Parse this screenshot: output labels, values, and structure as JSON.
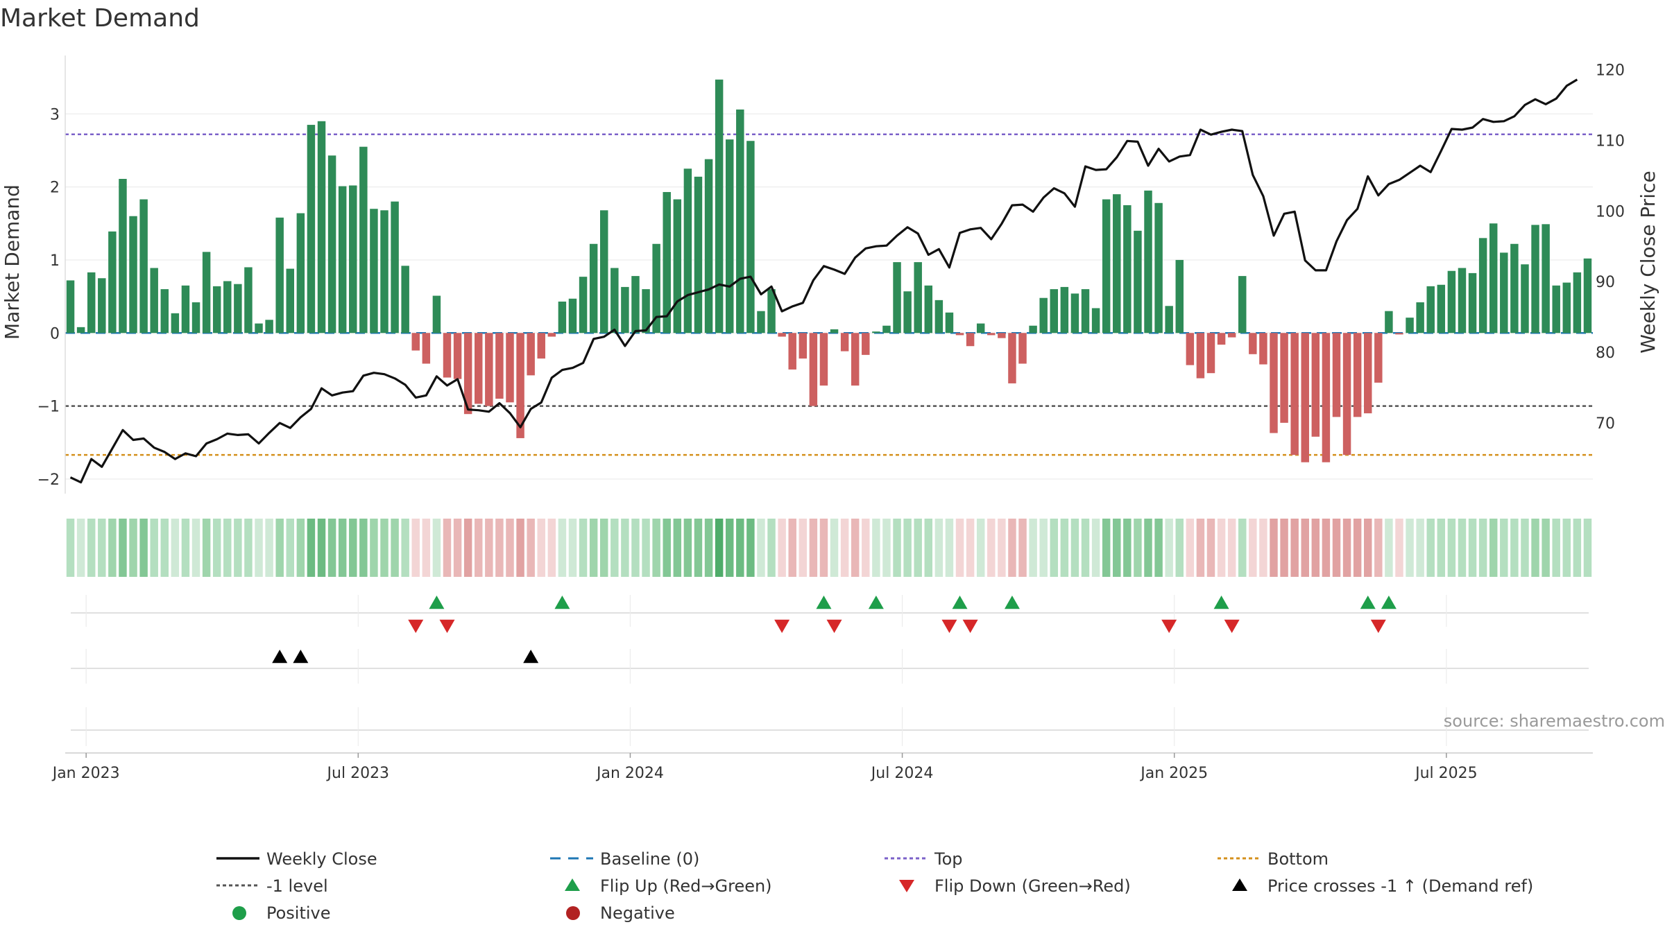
{
  "chart_data": {
    "type": "bar",
    "title": "Market Demand",
    "ylabel_left": "Market Demand",
    "ylabel_right": "Weekly Close Price",
    "ylim_left": [
      -2.2,
      3.8
    ],
    "ylim_right": [
      60,
      122
    ],
    "yticks_left": [
      3,
      2,
      1,
      0,
      -1,
      -2
    ],
    "ytick_labels_left": [
      "3",
      "2",
      "1",
      "0",
      "−1",
      "−2"
    ],
    "yticks_right": [
      120,
      110,
      100,
      90,
      80,
      70
    ],
    "ytick_labels_right": [
      "120",
      "110",
      "100",
      "90",
      "80",
      "70"
    ],
    "x_tick_labels": [
      "Jan 2023",
      "Jul 2023",
      "Jan 2024",
      "Jul 2024",
      "Jan 2025",
      "Jul 2025"
    ],
    "x_tick_weeks": [
      1.5,
      27.5,
      53.5,
      79.5,
      105.5,
      131.5
    ],
    "reference_lines": {
      "baseline": 0,
      "top": 2.72,
      "bottom": -1.67,
      "minus_one": -1
    },
    "demand_values": [
      0.72,
      0.08,
      0.83,
      0.75,
      1.39,
      2.11,
      1.6,
      1.83,
      0.89,
      0.6,
      0.27,
      0.65,
      0.42,
      1.11,
      0.64,
      0.71,
      0.67,
      0.9,
      0.13,
      0.18,
      1.58,
      0.88,
      1.64,
      2.85,
      2.9,
      2.43,
      2.01,
      2.02,
      2.55,
      1.7,
      1.68,
      1.8,
      0.92,
      -0.24,
      -0.42,
      0.51,
      -0.61,
      -0.63,
      -1.11,
      -0.97,
      -1.0,
      -0.9,
      -0.95,
      -1.44,
      -0.58,
      -0.35,
      -0.05,
      0.43,
      0.47,
      0.77,
      1.22,
      1.68,
      0.89,
      0.63,
      0.78,
      0.6,
      1.22,
      1.93,
      1.83,
      2.25,
      2.14,
      2.38,
      3.47,
      2.65,
      3.06,
      2.63,
      0.3,
      0.6,
      -0.05,
      -0.5,
      -0.35,
      -1.0,
      -0.72,
      0.05,
      -0.25,
      -0.72,
      -0.3,
      0.02,
      0.1,
      0.97,
      0.57,
      0.97,
      0.65,
      0.45,
      0.28,
      -0.03,
      -0.18,
      0.13,
      -0.03,
      -0.07,
      -0.69,
      -0.42,
      0.1,
      0.48,
      0.6,
      0.63,
      0.54,
      0.6,
      0.34,
      1.83,
      1.9,
      1.75,
      1.4,
      1.95,
      1.78,
      0.37,
      1.0,
      -0.44,
      -0.62,
      -0.55,
      -0.16,
      -0.06,
      0.78,
      -0.29,
      -0.43,
      -1.37,
      -1.23,
      -1.67,
      -1.77,
      -1.42,
      -1.77,
      -1.15,
      -1.67,
      -1.15,
      -1.1,
      -0.68,
      0.3,
      -0.02,
      0.21,
      0.42,
      0.64,
      0.66,
      0.85,
      0.89,
      0.82,
      1.3,
      1.5,
      1.1,
      1.22,
      0.94,
      1.48,
      1.49,
      0.65,
      0.69,
      0.83,
      1.02
    ],
    "weekly_close": [
      62.3,
      61.6,
      64.9,
      63.8,
      66.4,
      69.0,
      67.6,
      67.8,
      66.5,
      65.9,
      64.9,
      65.7,
      65.3,
      67.1,
      67.7,
      68.5,
      68.3,
      68.4,
      67.1,
      68.6,
      70.0,
      69.3,
      70.8,
      72.0,
      74.9,
      73.9,
      74.3,
      74.5,
      76.7,
      77.1,
      76.9,
      76.3,
      75.4,
      73.6,
      73.9,
      76.6,
      75.3,
      76.2,
      71.9,
      71.8,
      71.6,
      72.8,
      71.4,
      69.4,
      72.0,
      72.9,
      76.4,
      77.5,
      77.8,
      78.5,
      81.9,
      82.2,
      83.2,
      80.9,
      83.0,
      83.1,
      85.0,
      85.1,
      87.2,
      88.1,
      88.5,
      88.9,
      89.6,
      89.3,
      90.4,
      90.7,
      88.2,
      89.3,
      85.8,
      86.5,
      87.0,
      90.2,
      92.2,
      91.7,
      91.1,
      93.4,
      94.7,
      95.0,
      95.1,
      96.5,
      97.7,
      96.8,
      93.8,
      94.6,
      92.0,
      96.9,
      97.4,
      97.6,
      96.0,
      98.2,
      100.8,
      100.9,
      99.9,
      101.9,
      103.2,
      102.5,
      100.6,
      106.3,
      105.8,
      105.9,
      107.6,
      109.9,
      109.8,
      106.4,
      108.8,
      107.0,
      107.7,
      107.9,
      111.5,
      110.8,
      111.2,
      111.5,
      111.3,
      105.1,
      102.1,
      96.5,
      99.6,
      99.9,
      93.0,
      91.6,
      91.6,
      95.7,
      98.7,
      100.3,
      104.9,
      102.2,
      103.8,
      104.4,
      105.4,
      106.4,
      105.5,
      108.5,
      111.6,
      111.5,
      111.8,
      113.0,
      112.6,
      112.7,
      113.4,
      115.0,
      115.8,
      115.1,
      115.9,
      117.7,
      118.6
    ],
    "shade_levels": [
      2,
      1,
      2,
      2,
      3,
      4,
      3,
      4,
      2,
      2,
      1,
      2,
      1,
      3,
      2,
      2,
      2,
      2,
      1,
      1,
      3,
      2,
      3,
      5,
      5,
      4,
      4,
      4,
      4,
      3,
      3,
      3,
      2,
      -1,
      -1,
      1,
      -2,
      -2,
      -3,
      -2,
      -2,
      -2,
      -2,
      -3,
      -2,
      -1,
      -1,
      1,
      1,
      2,
      3,
      3,
      2,
      2,
      2,
      2,
      3,
      4,
      4,
      4,
      4,
      4,
      6,
      5,
      5,
      5,
      1,
      2,
      -1,
      -2,
      -1,
      -2,
      -2,
      1,
      -1,
      -2,
      -1,
      1,
      1,
      2,
      2,
      2,
      2,
      1,
      1,
      -1,
      -1,
      1,
      -1,
      -1,
      -2,
      -2,
      1,
      1,
      2,
      2,
      2,
      2,
      1,
      4,
      4,
      4,
      3,
      4,
      4,
      1,
      2,
      -1,
      -2,
      -2,
      -1,
      -1,
      2,
      -1,
      -1,
      -3,
      -3,
      -3,
      -3,
      -3,
      -3,
      -3,
      -3,
      -3,
      -3,
      -2,
      1,
      -1,
      1,
      1,
      2,
      2,
      2,
      2,
      2,
      2,
      3,
      2,
      2,
      2,
      3,
      3,
      2,
      2,
      2,
      2
    ],
    "flip_up_weeks": [
      35,
      47,
      72,
      77,
      85,
      90,
      110,
      124,
      126
    ],
    "flip_down_weeks": [
      33,
      36,
      68,
      73,
      84,
      86,
      105,
      111,
      125
    ],
    "price_cross_weeks": [
      20,
      22,
      44
    ],
    "source": "source: sharemaestro.com",
    "legend": [
      {
        "label": "Weekly Close",
        "style": "line",
        "color": "#111111"
      },
      {
        "label": "Baseline (0)",
        "style": "dash",
        "color": "#1f77b4"
      },
      {
        "label": "Top",
        "style": "dot",
        "color": "#7b61c9"
      },
      {
        "label": "Bottom",
        "style": "dot",
        "color": "#d4901c"
      },
      {
        "label": "-1 level",
        "style": "dot",
        "color": "#555555"
      },
      {
        "label": "Flip Up (Red→Green)",
        "style": "tri-up",
        "color": "#1e9e4a"
      },
      {
        "label": "Flip Down (Green→Red)",
        "style": "tri-down",
        "color": "#d62728"
      },
      {
        "label": "Price crosses -1 ↑ (Demand ref)",
        "style": "tri-up",
        "color": "#000000"
      },
      {
        "label": "Positive",
        "style": "circle",
        "color": "#1e9e4a"
      },
      {
        "label": "Negative",
        "style": "circle",
        "color": "#b22222"
      }
    ],
    "colors": {
      "positive_bar": "#2e8b57",
      "negative_bar": "#cd6060",
      "price_line": "#111111",
      "baseline": "#1f77b4",
      "top_line": "#7b61c9",
      "bottom_line": "#d4901c",
      "minus_one_line": "#555555",
      "flip_up": "#1e9e4a",
      "flip_down": "#d62728",
      "cross": "#000000",
      "grid": "#ebebeb"
    }
  }
}
